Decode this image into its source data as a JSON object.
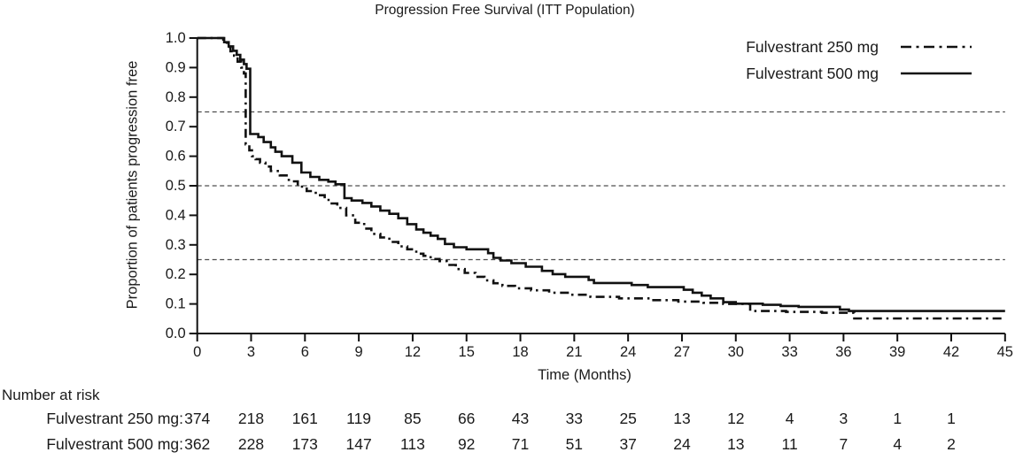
{
  "title": "Progression Free Survival (ITT Population)",
  "colors": {
    "line": "#111111",
    "reference_line": "#4d4d4d",
    "text": "#1a1a1a",
    "background": "#ffffff"
  },
  "legend": {
    "items": [
      {
        "label": "Fulvestrant 250 mg",
        "style": "dashdot"
      },
      {
        "label": "Fulvestrant 500 mg",
        "style": "solid"
      }
    ]
  },
  "chart_data": {
    "type": "line",
    "subtype": "kaplan-meier-step",
    "title": "Progression Free Survival (ITT Population)",
    "xlabel": "Time (Months)",
    "ylabel": "Proportion of patients progression free",
    "xlim": [
      0,
      45
    ],
    "ylim": [
      0.0,
      1.0
    ],
    "xticks": [
      0,
      3,
      6,
      9,
      12,
      15,
      18,
      21,
      24,
      27,
      30,
      33,
      36,
      39,
      42,
      45
    ],
    "yticks": [
      "0.0",
      "0.1",
      "0.2",
      "0.3",
      "0.4",
      "0.5",
      "0.6",
      "0.7",
      "0.8",
      "0.9",
      "1.0"
    ],
    "reference_lines": [
      0.25,
      0.5,
      0.75
    ],
    "grid": "horizontal-dashed-reference-lines",
    "legend_position": "top-right",
    "series": [
      {
        "name": "Fulvestrant 250 mg",
        "dash": "dashdot",
        "step": true,
        "points": [
          [
            0,
            1.0
          ],
          [
            1.25,
            1.0
          ],
          [
            1.45,
            0.985
          ],
          [
            1.65,
            0.97
          ],
          [
            1.85,
            0.955
          ],
          [
            2.05,
            0.94
          ],
          [
            2.25,
            0.92
          ],
          [
            2.45,
            0.9
          ],
          [
            2.6,
            0.88
          ],
          [
            2.7,
            0.64
          ],
          [
            2.9,
            0.62
          ],
          [
            3.05,
            0.6
          ],
          [
            3.25,
            0.59
          ],
          [
            3.5,
            0.578
          ],
          [
            3.8,
            0.565
          ],
          [
            4.1,
            0.55
          ],
          [
            4.6,
            0.535
          ],
          [
            5.1,
            0.515
          ],
          [
            5.6,
            0.497
          ],
          [
            6.1,
            0.482
          ],
          [
            6.6,
            0.468
          ],
          [
            7.1,
            0.452
          ],
          [
            7.4,
            0.44
          ],
          [
            7.8,
            0.425
          ],
          [
            8.3,
            0.4
          ],
          [
            8.8,
            0.375
          ],
          [
            9.3,
            0.355
          ],
          [
            9.7,
            0.337
          ],
          [
            10.2,
            0.325
          ],
          [
            10.7,
            0.31
          ],
          [
            11.2,
            0.295
          ],
          [
            11.7,
            0.285
          ],
          [
            12.2,
            0.27
          ],
          [
            12.6,
            0.263
          ],
          [
            13.0,
            0.252
          ],
          [
            13.5,
            0.245
          ],
          [
            13.9,
            0.232
          ],
          [
            14.4,
            0.218
          ],
          [
            14.9,
            0.205
          ],
          [
            15.5,
            0.192
          ],
          [
            16.0,
            0.18
          ],
          [
            16.5,
            0.17
          ],
          [
            17.0,
            0.161
          ],
          [
            17.7,
            0.153
          ],
          [
            18.6,
            0.146
          ],
          [
            19.6,
            0.138
          ],
          [
            20.7,
            0.131
          ],
          [
            21.9,
            0.124
          ],
          [
            23.5,
            0.119
          ],
          [
            25.2,
            0.113
          ],
          [
            26.8,
            0.108
          ],
          [
            28.2,
            0.104
          ],
          [
            29.3,
            0.1
          ],
          [
            30.8,
            0.076
          ],
          [
            32.8,
            0.073
          ],
          [
            34.8,
            0.07
          ],
          [
            36.6,
            0.051
          ],
          [
            45,
            0.051
          ]
        ]
      },
      {
        "name": "Fulvestrant 500 mg",
        "dash": "solid",
        "step": true,
        "points": [
          [
            0,
            1.0
          ],
          [
            1.3,
            1.0
          ],
          [
            1.5,
            0.986
          ],
          [
            1.75,
            0.972
          ],
          [
            2.0,
            0.957
          ],
          [
            2.2,
            0.943
          ],
          [
            2.4,
            0.927
          ],
          [
            2.6,
            0.912
          ],
          [
            2.75,
            0.896
          ],
          [
            2.95,
            0.675
          ],
          [
            3.4,
            0.665
          ],
          [
            3.7,
            0.648
          ],
          [
            4.1,
            0.63
          ],
          [
            4.35,
            0.615
          ],
          [
            4.7,
            0.6
          ],
          [
            5.3,
            0.578
          ],
          [
            5.8,
            0.545
          ],
          [
            6.3,
            0.53
          ],
          [
            6.8,
            0.52
          ],
          [
            7.3,
            0.514
          ],
          [
            7.7,
            0.505
          ],
          [
            8.2,
            0.458
          ],
          [
            8.6,
            0.45
          ],
          [
            9.2,
            0.442
          ],
          [
            9.7,
            0.43
          ],
          [
            10.2,
            0.416
          ],
          [
            10.7,
            0.405
          ],
          [
            11.2,
            0.39
          ],
          [
            11.7,
            0.37
          ],
          [
            12.2,
            0.352
          ],
          [
            12.6,
            0.341
          ],
          [
            13.0,
            0.331
          ],
          [
            13.4,
            0.32
          ],
          [
            13.8,
            0.303
          ],
          [
            14.3,
            0.292
          ],
          [
            15.0,
            0.285
          ],
          [
            16.2,
            0.272
          ],
          [
            16.5,
            0.256
          ],
          [
            16.9,
            0.247
          ],
          [
            17.5,
            0.238
          ],
          [
            18.3,
            0.226
          ],
          [
            19.2,
            0.212
          ],
          [
            19.8,
            0.201
          ],
          [
            20.5,
            0.192
          ],
          [
            21.8,
            0.181
          ],
          [
            22.1,
            0.171
          ],
          [
            24.2,
            0.164
          ],
          [
            25.1,
            0.157
          ],
          [
            27.1,
            0.148
          ],
          [
            27.6,
            0.138
          ],
          [
            28.1,
            0.128
          ],
          [
            28.6,
            0.119
          ],
          [
            29.3,
            0.106
          ],
          [
            30.0,
            0.101
          ],
          [
            31.5,
            0.097
          ],
          [
            32.5,
            0.093
          ],
          [
            33.5,
            0.09
          ],
          [
            35.8,
            0.081
          ],
          [
            36.3,
            0.076
          ],
          [
            45,
            0.076
          ]
        ]
      }
    ]
  },
  "risk_table": {
    "heading": "Number at risk",
    "months": [
      0,
      3,
      6,
      9,
      12,
      15,
      18,
      21,
      24,
      27,
      30,
      33,
      36,
      39,
      42
    ],
    "rows": [
      {
        "label": "Fulvestrant 250 mg:",
        "values": [
          374,
          218,
          161,
          119,
          85,
          66,
          43,
          33,
          25,
          13,
          12,
          4,
          3,
          1,
          1
        ]
      },
      {
        "label": "Fulvestrant 500 mg:",
        "values": [
          362,
          228,
          173,
          147,
          113,
          92,
          71,
          51,
          37,
          24,
          13,
          11,
          7,
          4,
          2
        ]
      }
    ]
  }
}
